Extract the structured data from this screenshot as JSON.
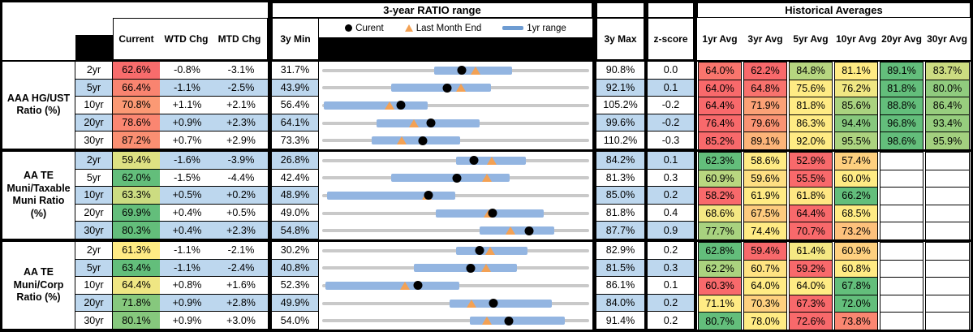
{
  "report": {
    "range_section_title": "3-year RATIO range",
    "hist_section_title": "Historical Averages",
    "legend": {
      "current": "Curent",
      "last_month_end": "Last Month End",
      "one_yr_range": "1yr range"
    },
    "col_headers": {
      "current": "Current",
      "wtd": "WTD Chg",
      "mtd": "MTD Chg",
      "min": "3y Min",
      "max": "3y Max",
      "z": "z-score",
      "averages": [
        "1yr Avg",
        "3yr Avg",
        "5yr Avg",
        "10yr Avg",
        "20yr Avg",
        "30yr Avg"
      ]
    },
    "colors": {
      "scale_red": "#F8696B",
      "scale_yellow": "#FFEB84",
      "scale_green": "#63BE7B",
      "row_alt_blue": "#BDD7EE",
      "range_bar_blue": "#93B5E1",
      "legend_bar_blue": "#6E9CD2",
      "full_range_gray": "#C9C9C9",
      "last_month_orange": "#F3A154",
      "current_dot_black": "#000000"
    }
  },
  "chart_data": {
    "type": "table",
    "note": "Embedded dot/range chart per row: gray line spans 3y Min to 3y Max; blue bar is 1yr range (values estimated from pixels); black dot = Current; orange triangle = Last Month End (Current minus MTD Chg).",
    "groups": [
      {
        "label": "AAA HG/UST\nRatio (%)",
        "rows": [
          {
            "tenor": "2yr",
            "current": 62.6,
            "wtd_chg": -0.8,
            "mtd_chg": -3.1,
            "min_3y": 31.7,
            "range_1yr": [
              56.5,
              73.7
            ],
            "max_3y": 90.8,
            "z": 0.0,
            "averages": [
              64.0,
              62.2,
              84.8,
              81.1,
              89.1,
              83.7
            ]
          },
          {
            "tenor": "5yr",
            "current": 66.4,
            "wtd_chg": -1.1,
            "mtd_chg": -2.5,
            "min_3y": 43.9,
            "range_1yr": [
              56.3,
              74.4
            ],
            "max_3y": 92.1,
            "z": 0.1,
            "averages": [
              64.0,
              64.8,
              75.6,
              76.2,
              81.8,
              80.0
            ]
          },
          {
            "tenor": "10yr",
            "current": 70.8,
            "wtd_chg": 1.1,
            "mtd_chg": 2.1,
            "min_3y": 56.4,
            "range_1yr": [
              56.7,
              75.7
            ],
            "max_3y": 105.2,
            "z": -0.2,
            "averages": [
              64.4,
              71.9,
              81.8,
              85.6,
              88.8,
              86.4
            ]
          },
          {
            "tenor": "20yr",
            "current": 78.6,
            "wtd_chg": 0.9,
            "mtd_chg": 2.3,
            "min_3y": 64.1,
            "range_1yr": [
              71.3,
              85.0
            ],
            "max_3y": 99.6,
            "z": -0.2,
            "averages": [
              76.4,
              79.6,
              86.3,
              94.4,
              96.8,
              93.4
            ]
          },
          {
            "tenor": "30yr",
            "current": 87.2,
            "wtd_chg": 0.7,
            "mtd_chg": 2.9,
            "min_3y": 73.3,
            "range_1yr": [
              80.1,
              92.4
            ],
            "max_3y": 110.2,
            "z": -0.3,
            "averages": [
              85.2,
              89.1,
              92.0,
              95.5,
              98.6,
              95.9
            ]
          }
        ]
      },
      {
        "label": "AA TE\nMuni/Taxable\nMuni Ratio\n(%)",
        "rows": [
          {
            "tenor": "2yr",
            "current": 59.4,
            "wtd_chg": -1.6,
            "mtd_chg": -3.9,
            "min_3y": 26.8,
            "range_1yr": [
              55.5,
              70.6
            ],
            "max_3y": 84.2,
            "z": 0.1,
            "averages": [
              62.3,
              58.6,
              52.9,
              57.4,
              null,
              null
            ]
          },
          {
            "tenor": "5yr",
            "current": 62.0,
            "wtd_chg": -1.5,
            "mtd_chg": -4.4,
            "min_3y": 42.4,
            "range_1yr": [
              52.5,
              69.7
            ],
            "max_3y": 81.3,
            "z": 0.3,
            "averages": [
              60.9,
              59.6,
              55.5,
              60.0,
              null,
              null
            ]
          },
          {
            "tenor": "10yr",
            "current": 63.3,
            "wtd_chg": 0.5,
            "mtd_chg": 0.2,
            "min_3y": 48.9,
            "range_1yr": [
              49.5,
              66.9
            ],
            "max_3y": 85.0,
            "z": 0.2,
            "averages": [
              58.2,
              61.9,
              61.8,
              66.2,
              null,
              null
            ]
          },
          {
            "tenor": "20yr",
            "current": 69.9,
            "wtd_chg": 0.4,
            "mtd_chg": 0.5,
            "min_3y": 49.0,
            "range_1yr": [
              63.0,
              76.2
            ],
            "max_3y": 81.8,
            "z": 0.4,
            "averages": [
              68.6,
              67.5,
              64.4,
              68.5,
              null,
              null
            ]
          },
          {
            "tenor": "30yr",
            "current": 80.3,
            "wtd_chg": 0.4,
            "mtd_chg": 2.3,
            "min_3y": 54.8,
            "range_1yr": [
              74.2,
              83.4
            ],
            "max_3y": 87.7,
            "z": 0.9,
            "averages": [
              77.7,
              74.4,
              70.7,
              73.2,
              null,
              null
            ]
          }
        ]
      },
      {
        "label": "AA TE\nMuni/Corp\nRatio (%)",
        "rows": [
          {
            "tenor": "2yr",
            "current": 61.3,
            "wtd_chg": -1.1,
            "mtd_chg": -2.1,
            "min_3y": 30.2,
            "range_1yr": [
              56.6,
              70.7
            ],
            "max_3y": 82.9,
            "z": 0.2,
            "averages": [
              62.8,
              59.4,
              61.4,
              60.9,
              null,
              null
            ]
          },
          {
            "tenor": "5yr",
            "current": 63.4,
            "wtd_chg": -1.1,
            "mtd_chg": -2.4,
            "min_3y": 40.8,
            "range_1yr": [
              54.8,
              70.5
            ],
            "max_3y": 81.5,
            "z": 0.3,
            "averages": [
              62.2,
              60.7,
              59.2,
              60.8,
              null,
              null
            ]
          },
          {
            "tenor": "10yr",
            "current": 64.4,
            "wtd_chg": 0.8,
            "mtd_chg": 1.6,
            "min_3y": 52.3,
            "range_1yr": [
              52.7,
              69.7
            ],
            "max_3y": 86.1,
            "z": 0.1,
            "averages": [
              60.3,
              64.0,
              64.0,
              67.8,
              null,
              null
            ]
          },
          {
            "tenor": "20yr",
            "current": 71.8,
            "wtd_chg": 0.9,
            "mtd_chg": 2.8,
            "min_3y": 49.9,
            "range_1yr": [
              66.2,
              79.2
            ],
            "max_3y": 84.0,
            "z": 0.2,
            "averages": [
              71.1,
              70.3,
              67.3,
              72.0,
              null,
              null
            ]
          },
          {
            "tenor": "30yr",
            "current": 80.1,
            "wtd_chg": 0.9,
            "mtd_chg": 3.0,
            "min_3y": 54.0,
            "range_1yr": [
              74.7,
              88.0
            ],
            "max_3y": 91.4,
            "z": 0.2,
            "averages": [
              80.7,
              78.0,
              72.6,
              73.8,
              null,
              null
            ]
          }
        ]
      }
    ]
  }
}
